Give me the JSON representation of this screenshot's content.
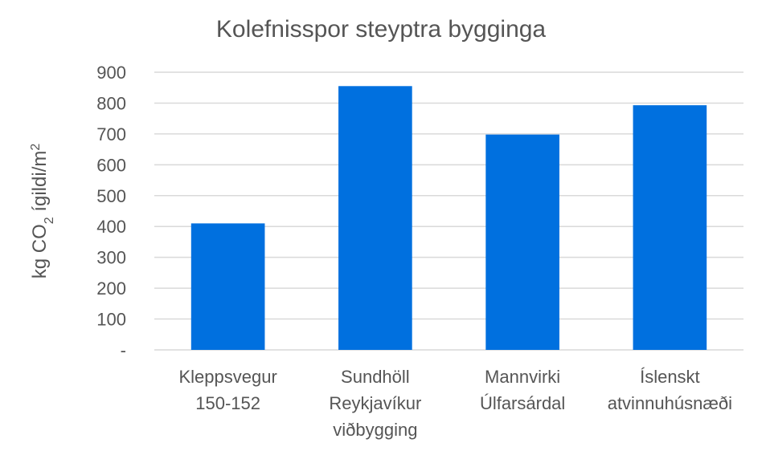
{
  "chart_data": {
    "type": "bar",
    "title": "Kolefnisspor steyptra bygginga",
    "ylabel": {
      "prefix": "kg CO",
      "subscript": "2",
      "middle": " ígildi/m",
      "superscript": "2"
    },
    "xlabel": "",
    "categories": [
      [
        "Kleppsvegur",
        "150-152"
      ],
      [
        "Sundhöll",
        "Reykjavíkur",
        "viðbygging"
      ],
      [
        "Mannvirki",
        "Úlfarsárdal"
      ],
      [
        "Íslenskt",
        "atvinnuhúsnæði"
      ]
    ],
    "values": [
      410,
      855,
      698,
      793
    ],
    "ylim": [
      0,
      900
    ],
    "yticks": [
      0,
      100,
      200,
      300,
      400,
      500,
      600,
      700,
      800,
      900
    ],
    "ytick_labels": [
      "-",
      "100",
      "200",
      "300",
      "400",
      "500",
      "600",
      "700",
      "800",
      "900"
    ],
    "grid": true,
    "bar_color": "#0070DF"
  }
}
